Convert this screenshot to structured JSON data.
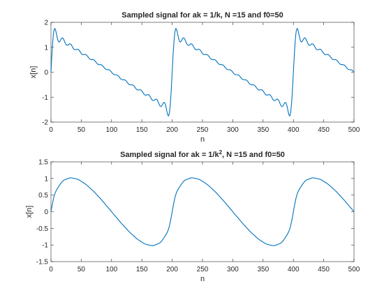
{
  "figure": {
    "background": "#ffffff",
    "axis_color": "#262626",
    "line_color": "#0072bd"
  },
  "chart_data": [
    {
      "type": "line",
      "title": "Sampled signal for ak = 1/k, N =15 and f0=50",
      "title_base": "Sampled signal for ak = 1/k, N =15 and f0=50",
      "title_sup": "",
      "title_rest": "",
      "xlabel": "n",
      "ylabel": "x[n]",
      "xlim": [
        0,
        500
      ],
      "ylim": [
        -2,
        2
      ],
      "xticks": [
        0,
        50,
        100,
        150,
        200,
        250,
        300,
        350,
        400,
        450,
        500
      ],
      "yticks": [
        -2,
        -1,
        0,
        1,
        2
      ],
      "grid": false,
      "series": [
        {
          "formula": "sum_{k=1..15} sin(2*pi*k*n/200)/k",
          "x_range": [
            0,
            500
          ],
          "period": 200,
          "N": 15,
          "exponent": 1
        }
      ]
    },
    {
      "type": "line",
      "title": "Sampled signal for ak = 1/k^2, N =15 and f0=50",
      "title_base": "Sampled signal for ak = 1/k",
      "title_sup": "2",
      "title_rest": ", N =15 and f0=50",
      "xlabel": "n",
      "ylabel": "x[n]",
      "xlim": [
        0,
        500
      ],
      "ylim": [
        -1.5,
        1.5
      ],
      "xticks": [
        0,
        50,
        100,
        150,
        200,
        250,
        300,
        350,
        400,
        450,
        500
      ],
      "yticks": [
        -1.5,
        -1,
        -0.5,
        0,
        0.5,
        1,
        1.5
      ],
      "grid": false,
      "series": [
        {
          "formula": "sum_{k=1..15} sin(2*pi*k*n/200)/k^2",
          "x_range": [
            0,
            500
          ],
          "period": 200,
          "N": 15,
          "exponent": 2
        }
      ]
    }
  ]
}
